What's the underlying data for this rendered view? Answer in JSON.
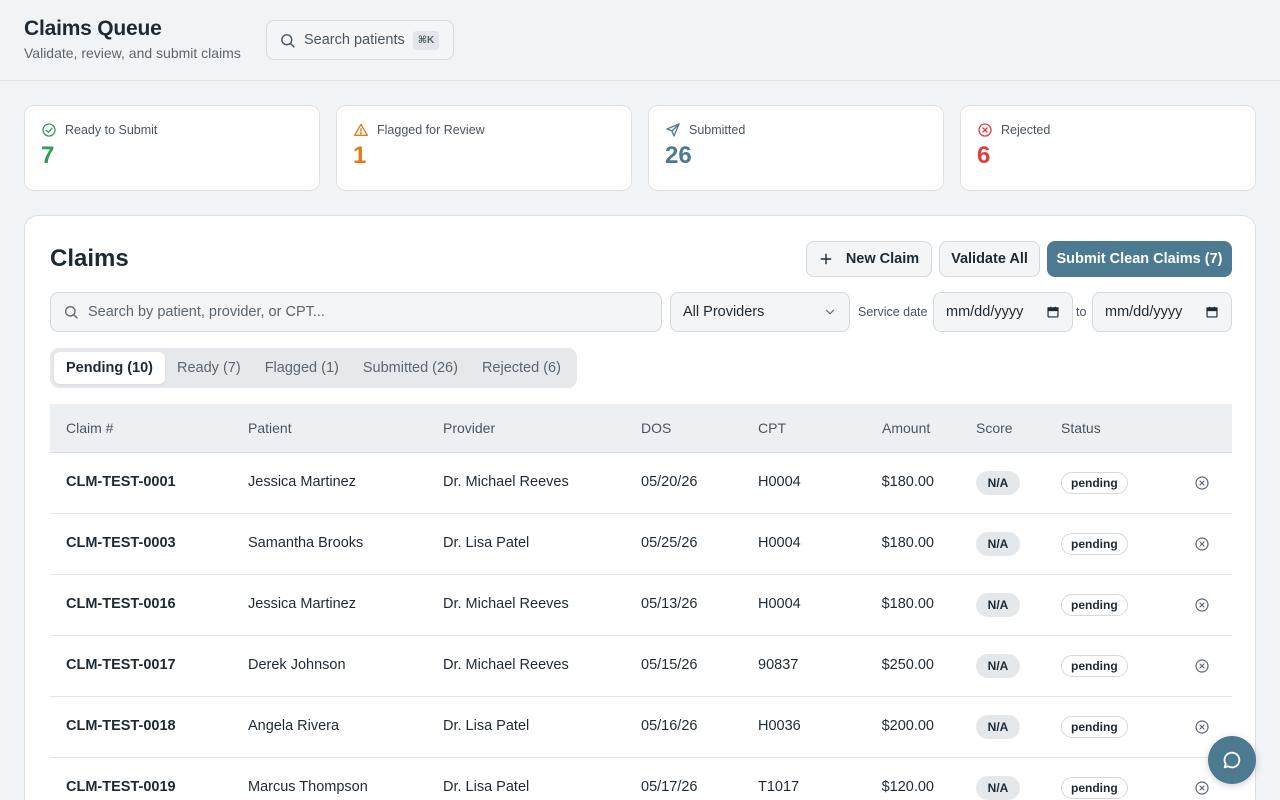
{
  "header": {
    "title": "Claims Queue",
    "subtitle": "Validate, review, and submit claims",
    "search_label": "Search patients",
    "search_shortcut": "⌘K"
  },
  "stats": [
    {
      "label": "Ready to Submit",
      "value": "7",
      "color": "#2f9e56",
      "icon": "check-circle-icon"
    },
    {
      "label": "Flagged for Review",
      "value": "1",
      "color": "#e07b18",
      "icon": "warning-triangle-icon"
    },
    {
      "label": "Submitted",
      "value": "26",
      "color": "#4c7a91",
      "icon": "send-icon"
    },
    {
      "label": "Rejected",
      "value": "6",
      "color": "#e03e3e",
      "icon": "x-circle-icon"
    }
  ],
  "panel": {
    "title": "Claims",
    "new_claim_label": "New Claim",
    "validate_all_label": "Validate All",
    "submit_clean_label": "Submit Clean Claims (7)",
    "search_placeholder": "Search by patient, provider, or CPT...",
    "provider_select_value": "All Providers",
    "service_date_label": "Service date",
    "date_from_placeholder": "mm/dd/yyyy",
    "to_label": "to",
    "date_to_placeholder": "mm/dd/yyyy"
  },
  "tabs": [
    {
      "label": "Pending (10)",
      "active": true
    },
    {
      "label": "Ready (7)",
      "active": false
    },
    {
      "label": "Flagged (1)",
      "active": false
    },
    {
      "label": "Submitted (26)",
      "active": false
    },
    {
      "label": "Rejected (6)",
      "active": false
    }
  ],
  "table": {
    "headers": {
      "claim": "Claim #",
      "patient": "Patient",
      "provider": "Provider",
      "dos": "DOS",
      "cpt": "CPT",
      "amount": "Amount",
      "score": "Score",
      "status": "Status"
    },
    "rows": [
      {
        "claim": "CLM-TEST-0001",
        "patient": "Jessica Martinez",
        "provider": "Dr. Michael Reeves",
        "dos": "05/20/26",
        "cpt": "H0004",
        "amount": "$180.00",
        "score": "N/A",
        "status": "pending"
      },
      {
        "claim": "CLM-TEST-0003",
        "patient": "Samantha Brooks",
        "provider": "Dr. Lisa Patel",
        "dos": "05/25/26",
        "cpt": "H0004",
        "amount": "$180.00",
        "score": "N/A",
        "status": "pending"
      },
      {
        "claim": "CLM-TEST-0016",
        "patient": "Jessica Martinez",
        "provider": "Dr. Michael Reeves",
        "dos": "05/13/26",
        "cpt": "H0004",
        "amount": "$180.00",
        "score": "N/A",
        "status": "pending"
      },
      {
        "claim": "CLM-TEST-0017",
        "patient": "Derek Johnson",
        "provider": "Dr. Michael Reeves",
        "dos": "05/15/26",
        "cpt": "90837",
        "amount": "$250.00",
        "score": "N/A",
        "status": "pending"
      },
      {
        "claim": "CLM-TEST-0018",
        "patient": "Angela Rivera",
        "provider": "Dr. Lisa Patel",
        "dos": "05/16/26",
        "cpt": "H0036",
        "amount": "$200.00",
        "score": "N/A",
        "status": "pending"
      },
      {
        "claim": "CLM-TEST-0019",
        "patient": "Marcus Thompson",
        "provider": "Dr. Lisa Patel",
        "dos": "05/17/26",
        "cpt": "T1017",
        "amount": "$120.00",
        "score": "N/A",
        "status": "pending"
      }
    ]
  },
  "colors": {
    "accent": "#4c7a91",
    "background": "#f1f4f7"
  }
}
